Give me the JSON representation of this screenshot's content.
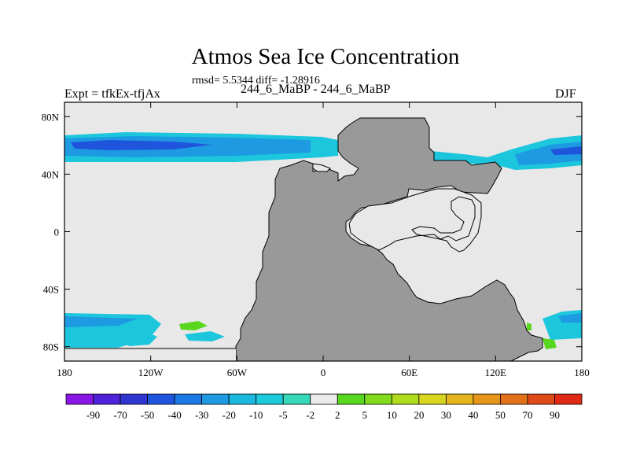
{
  "title": "Atmos Sea Ice Concentration",
  "stats": "rmsd= 5.5344 diff= -1.28916",
  "left_label": "Expt = tfkEx-tfjAx",
  "center_label": "244_6_MaBP - 244_6_MaBP",
  "right_label": "DJF",
  "map": {
    "lon_range": [
      -180,
      180
    ],
    "lat_range": [
      -90,
      90
    ],
    "x_ticks": [
      {
        "lon": -180,
        "label": "180"
      },
      {
        "lon": -120,
        "label": "120W"
      },
      {
        "lon": -60,
        "label": "60W"
      },
      {
        "lon": 0,
        "label": "0"
      },
      {
        "lon": 60,
        "label": "60E"
      },
      {
        "lon": 120,
        "label": "120E"
      },
      {
        "lon": 180,
        "label": "180"
      }
    ],
    "y_ticks": [
      {
        "lat": 80,
        "label": "80N"
      },
      {
        "lat": 40,
        "label": "40N"
      },
      {
        "lat": 0,
        "label": "0"
      },
      {
        "lat": -40,
        "label": "40S"
      },
      {
        "lat": -80,
        "label": "80S"
      }
    ],
    "colors": {
      "ocean": "#e8e8e8",
      "land": "#999999",
      "outline": "#000000"
    }
  },
  "colorbar": {
    "labels": [
      "-90",
      "-70",
      "-50",
      "-40",
      "-30",
      "-20",
      "-10",
      "-5",
      "-2",
      "2",
      "5",
      "10",
      "20",
      "30",
      "40",
      "50",
      "70",
      "90"
    ],
    "colors": [
      "#8a16e6",
      "#4e22d8",
      "#2f35d0",
      "#1f54dc",
      "#1c78e4",
      "#1d9ae2",
      "#1bb8e0",
      "#1ccadb",
      "#35d8b8",
      "#eaeaea",
      "#58d71e",
      "#82da1d",
      "#b0dc1e",
      "#d8d61f",
      "#e4b51c",
      "#e6951b",
      "#e2721a",
      "#e04a18",
      "#de2914"
    ]
  }
}
